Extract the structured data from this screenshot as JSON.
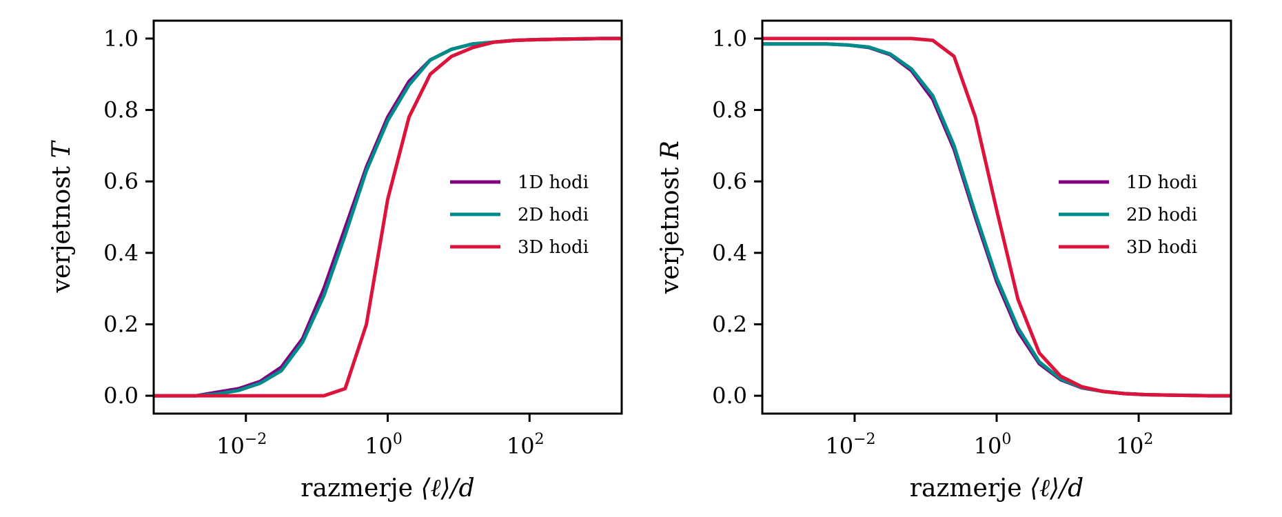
{
  "chart_data": [
    {
      "type": "line",
      "panel": "left",
      "xscale": "log",
      "xlabel_text": "razmerje",
      "xlabel_math": "⟨ℓ⟩/d",
      "ylabel_text": "verjetnost",
      "ylabel_math": "T",
      "xlim_log10": [
        -3.3,
        3.3
      ],
      "ylim": [
        -0.05,
        1.05
      ],
      "xticks": [
        {
          "log10": -2,
          "base": "10",
          "exp": "−2"
        },
        {
          "log10": 0,
          "base": "10",
          "exp": "0"
        },
        {
          "log10": 2,
          "base": "10",
          "exp": "2"
        }
      ],
      "yticks": [
        {
          "value": 0.0,
          "label": "0.0"
        },
        {
          "value": 0.2,
          "label": "0.2"
        },
        {
          "value": 0.4,
          "label": "0.4"
        },
        {
          "value": 0.6,
          "label": "0.6"
        },
        {
          "value": 0.8,
          "label": "0.8"
        },
        {
          "value": 1.0,
          "label": "1.0"
        }
      ],
      "grid": false,
      "legend_position": "center-right",
      "x_log10": [
        -3.3,
        -3.0,
        -2.7,
        -2.4,
        -2.1,
        -1.8,
        -1.5,
        -1.2,
        -0.9,
        -0.6,
        -0.3,
        0.0,
        0.3,
        0.6,
        0.9,
        1.2,
        1.5,
        1.8,
        2.1,
        2.4,
        2.7,
        3.0,
        3.3
      ],
      "series": [
        {
          "name": "1D hodi",
          "color": "#800080",
          "values": [
            0.0,
            0.0,
            0.0,
            0.01,
            0.02,
            0.04,
            0.08,
            0.16,
            0.3,
            0.47,
            0.64,
            0.78,
            0.88,
            0.94,
            0.97,
            0.985,
            0.99,
            0.995,
            0.997,
            0.998,
            0.999,
            1.0,
            1.0
          ]
        },
        {
          "name": "2D hodi",
          "color": "#008B8B",
          "values": [
            0.0,
            0.0,
            0.0,
            0.005,
            0.015,
            0.035,
            0.07,
            0.15,
            0.28,
            0.45,
            0.63,
            0.77,
            0.87,
            0.94,
            0.97,
            0.985,
            0.99,
            0.995,
            0.997,
            0.998,
            0.999,
            1.0,
            1.0
          ]
        },
        {
          "name": "3D hodi",
          "color": "#DC143C",
          "values": [
            0.0,
            0.0,
            0.0,
            0.0,
            0.0,
            0.0,
            0.0,
            0.0,
            0.0,
            0.02,
            0.2,
            0.55,
            0.78,
            0.9,
            0.95,
            0.975,
            0.99,
            0.995,
            0.997,
            0.998,
            0.999,
            1.0,
            1.0
          ]
        }
      ]
    },
    {
      "type": "line",
      "panel": "right",
      "xscale": "log",
      "xlabel_text": "razmerje",
      "xlabel_math": "⟨ℓ⟩/d",
      "ylabel_text": "verjetnost",
      "ylabel_math": "R",
      "xlim_log10": [
        -3.3,
        3.3
      ],
      "ylim": [
        -0.05,
        1.05
      ],
      "xticks": [
        {
          "log10": -2,
          "base": "10",
          "exp": "−2"
        },
        {
          "log10": 0,
          "base": "10",
          "exp": "0"
        },
        {
          "log10": 2,
          "base": "10",
          "exp": "2"
        }
      ],
      "yticks": [
        {
          "value": 0.0,
          "label": "0.0"
        },
        {
          "value": 0.2,
          "label": "0.2"
        },
        {
          "value": 0.4,
          "label": "0.4"
        },
        {
          "value": 0.6,
          "label": "0.6"
        },
        {
          "value": 0.8,
          "label": "0.8"
        },
        {
          "value": 1.0,
          "label": "1.0"
        }
      ],
      "grid": false,
      "legend_position": "center-right",
      "x_log10": [
        -3.3,
        -3.0,
        -2.7,
        -2.4,
        -2.1,
        -1.8,
        -1.5,
        -1.2,
        -0.9,
        -0.6,
        -0.3,
        0.0,
        0.3,
        0.6,
        0.9,
        1.2,
        1.5,
        1.8,
        2.1,
        2.4,
        2.7,
        3.0,
        3.3
      ],
      "series": [
        {
          "name": "1D hodi",
          "color": "#800080",
          "values": [
            0.985,
            0.985,
            0.985,
            0.985,
            0.982,
            0.975,
            0.955,
            0.91,
            0.83,
            0.69,
            0.5,
            0.32,
            0.18,
            0.09,
            0.045,
            0.022,
            0.012,
            0.006,
            0.003,
            0.002,
            0.001,
            0.0,
            0.0
          ]
        },
        {
          "name": "2D hodi",
          "color": "#008B8B",
          "values": [
            0.985,
            0.985,
            0.985,
            0.985,
            0.982,
            0.976,
            0.957,
            0.915,
            0.84,
            0.7,
            0.51,
            0.33,
            0.19,
            0.095,
            0.047,
            0.023,
            0.012,
            0.006,
            0.003,
            0.002,
            0.001,
            0.0,
            0.0
          ]
        },
        {
          "name": "3D hodi",
          "color": "#DC143C",
          "values": [
            1.0,
            1.0,
            1.0,
            1.0,
            1.0,
            1.0,
            1.0,
            1.0,
            0.995,
            0.95,
            0.78,
            0.52,
            0.27,
            0.12,
            0.055,
            0.025,
            0.012,
            0.006,
            0.003,
            0.002,
            0.001,
            0.0,
            0.0
          ]
        }
      ]
    }
  ]
}
